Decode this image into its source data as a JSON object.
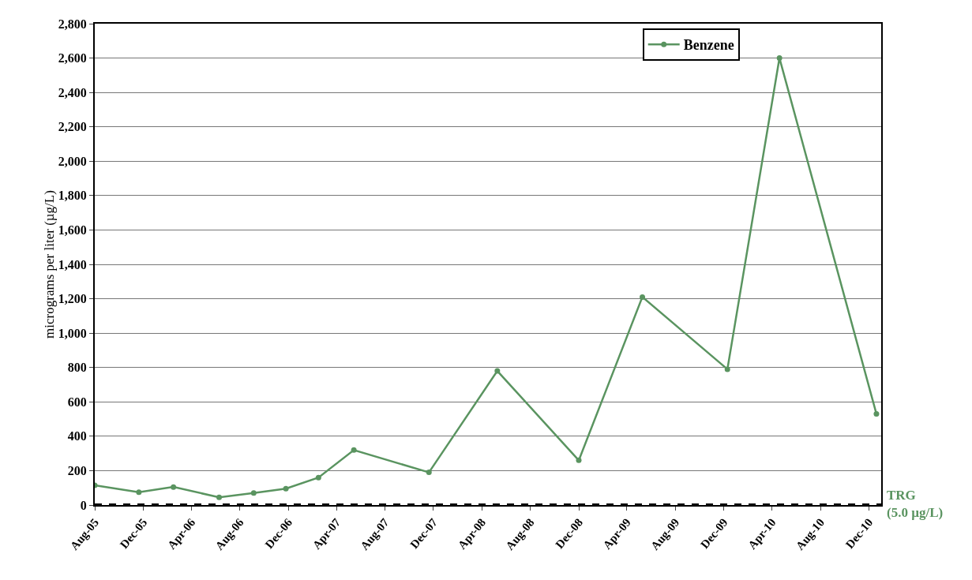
{
  "chart_data": {
    "type": "line",
    "ylabel": "micrograms per liter (µg/L)",
    "x": [
      "2005-08-01",
      "2005-11-20",
      "2006-02-15",
      "2006-06-10",
      "2006-09-05",
      "2006-11-25",
      "2007-02-15",
      "2007-05-15",
      "2007-11-20",
      "2008-05-10",
      "2008-12-01",
      "2009-05-10",
      "2009-12-10",
      "2010-04-20",
      "2010-12-20"
    ],
    "series": [
      {
        "name": "Benzene",
        "color": "#5a9460",
        "values": [
          115,
          75,
          105,
          45,
          70,
          95,
          160,
          320,
          190,
          780,
          260,
          1210,
          790,
          2600,
          530
        ]
      }
    ],
    "xlim": [
      "2005-08-01",
      "2011-01-01"
    ],
    "xticks": [
      {
        "value": "2005-08-01",
        "label": "Aug-05"
      },
      {
        "value": "2005-12-01",
        "label": "Dec-05"
      },
      {
        "value": "2006-04-01",
        "label": "Apr-06"
      },
      {
        "value": "2006-08-01",
        "label": "Aug-06"
      },
      {
        "value": "2006-12-01",
        "label": "Dec-06"
      },
      {
        "value": "2007-04-01",
        "label": "Apr-07"
      },
      {
        "value": "2007-08-01",
        "label": "Aug-07"
      },
      {
        "value": "2007-12-01",
        "label": "Dec-07"
      },
      {
        "value": "2008-04-01",
        "label": "Apr-08"
      },
      {
        "value": "2008-08-01",
        "label": "Aug-08"
      },
      {
        "value": "2008-12-01",
        "label": "Dec-08"
      },
      {
        "value": "2009-04-01",
        "label": "Apr-09"
      },
      {
        "value": "2009-08-01",
        "label": "Aug-09"
      },
      {
        "value": "2009-12-01",
        "label": "Dec-09"
      },
      {
        "value": "2010-04-01",
        "label": "Apr-10"
      },
      {
        "value": "2010-08-01",
        "label": "Aug-10"
      },
      {
        "value": "2010-12-01",
        "label": "Dec-10"
      }
    ],
    "ylim": [
      0,
      2800
    ],
    "yticks": [
      {
        "value": 0,
        "label": "0"
      },
      {
        "value": 200,
        "label": "200"
      },
      {
        "value": 400,
        "label": "400"
      },
      {
        "value": 600,
        "label": "600"
      },
      {
        "value": 800,
        "label": "800"
      },
      {
        "value": 1000,
        "label": "1,000"
      },
      {
        "value": 1200,
        "label": "1,200"
      },
      {
        "value": 1400,
        "label": "1,400"
      },
      {
        "value": 1600,
        "label": "1,600"
      },
      {
        "value": 1800,
        "label": "1,800"
      },
      {
        "value": 2000,
        "label": "2,000"
      },
      {
        "value": 2200,
        "label": "2,200"
      },
      {
        "value": 2400,
        "label": "2,400"
      },
      {
        "value": 2600,
        "label": "2,600"
      },
      {
        "value": 2800,
        "label": "2,800"
      }
    ],
    "ref_lines": [
      {
        "axis": "y",
        "value": 5,
        "label": "TRG\n(5.0 µg/L)",
        "color": "#000000",
        "line_style": "dashed"
      }
    ],
    "grid": "y",
    "legend": "top right",
    "marker": "circle",
    "line_style": "solid"
  }
}
